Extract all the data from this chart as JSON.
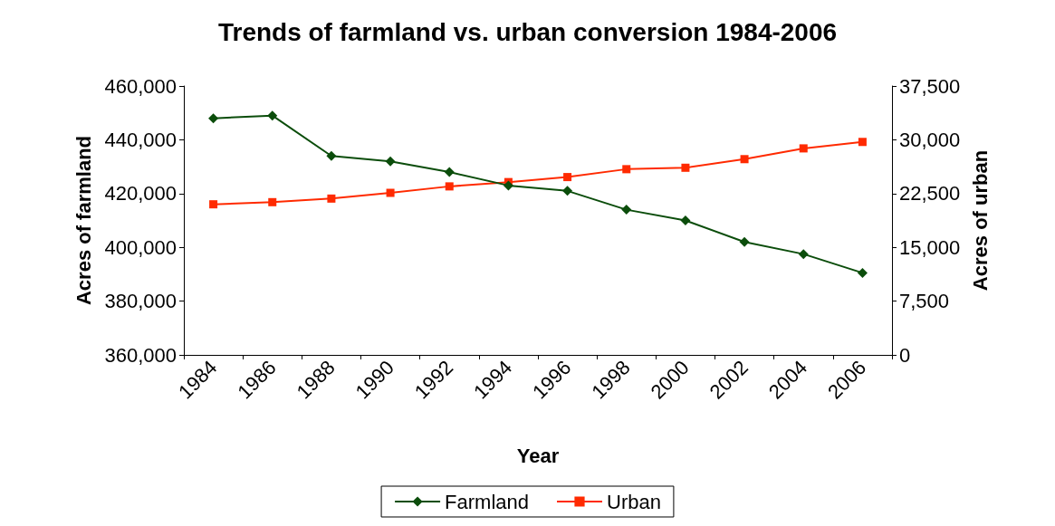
{
  "chart_data": {
    "type": "line",
    "title": "Trends of farmland vs. urban conversion 1984-2006",
    "xlabel": "Year",
    "ylabel": "Acres of farmland",
    "y2label": "Acres of urban",
    "categories": [
      "1984",
      "1986",
      "1988",
      "1990",
      "1992",
      "1994",
      "1996",
      "1998",
      "2000",
      "2002",
      "2004",
      "2006"
    ],
    "series": [
      {
        "name": "Farmland",
        "color": "#0b4d0b",
        "marker": "diamond",
        "values": [
          448000,
          449000,
          434000,
          432000,
          428000,
          423000,
          421000,
          414000,
          410000,
          402000,
          397500,
          390500
        ]
      },
      {
        "name": "Urban",
        "color": "#ff2a00",
        "marker": "square",
        "axis": "y2",
        "values": [
          21000,
          21300,
          21800,
          22600,
          23500,
          24100,
          24800,
          25900,
          26100,
          27300,
          28800,
          29700
        ]
      }
    ],
    "ylim": [
      360000,
      460000
    ],
    "yticks": [
      {
        "value": 360000,
        "label": "360,000"
      },
      {
        "value": 380000,
        "label": "380,000"
      },
      {
        "value": 400000,
        "label": "400,000"
      },
      {
        "value": 420000,
        "label": "420,000"
      },
      {
        "value": 440000,
        "label": "440,000"
      },
      {
        "value": 460000,
        "label": "460,000"
      }
    ],
    "y2lim": [
      0,
      37500
    ],
    "y2ticks": [
      0,
      {
        "value": 7500,
        "label": "7,500"
      },
      {
        "value": 15000,
        "label": "15,000"
      },
      {
        "value": 22500,
        "label": "22,500"
      },
      {
        "value": 30000,
        "label": "30,000"
      },
      {
        "value": 37500,
        "label": "37,500"
      }
    ],
    "grid": false,
    "legend": "bottom",
    "line_style": "solid"
  }
}
